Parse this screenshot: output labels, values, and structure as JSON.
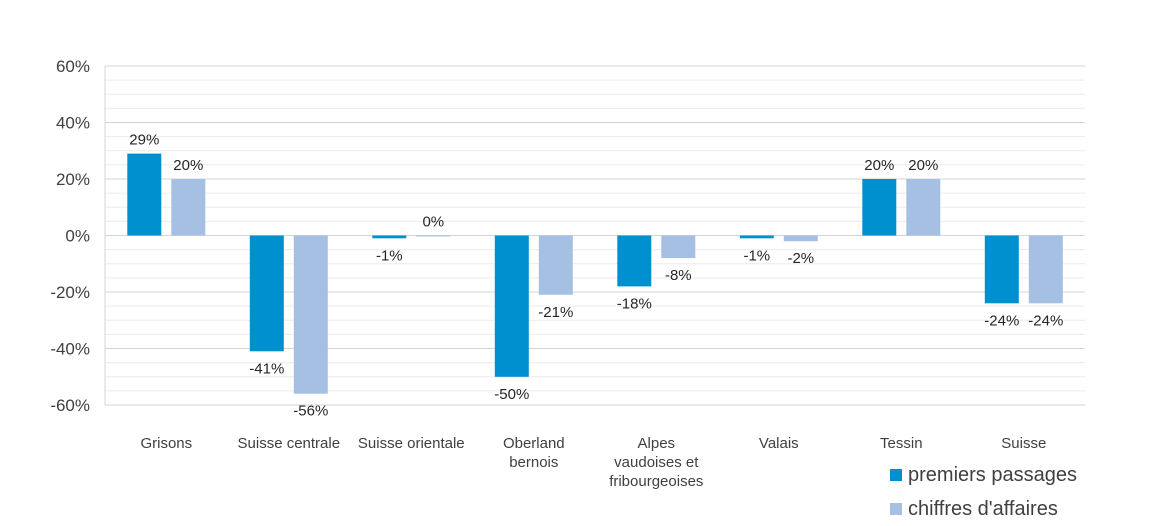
{
  "chart_data": {
    "type": "bar",
    "categories": [
      [
        "Grisons"
      ],
      [
        "Suisse centrale"
      ],
      [
        "Suisse orientale"
      ],
      [
        "Oberland",
        "bernois"
      ],
      [
        "Alpes",
        "vaudoises et",
        "fribourgeoises"
      ],
      [
        "Valais"
      ],
      [
        "Tessin"
      ],
      [
        "Suisse"
      ]
    ],
    "series": [
      {
        "name": "premiers passages",
        "color": "#0090CF",
        "values": [
          29,
          -41,
          -1,
          -50,
          -18,
          -1,
          20,
          -24
        ],
        "labels": [
          "29%",
          "-41%",
          "-1%",
          "-50%",
          "-18%",
          "-1%",
          "20%",
          "-24%"
        ]
      },
      {
        "name": "chiffres d'affaires",
        "color": "#A5C0E3",
        "values": [
          20,
          -56,
          0,
          -21,
          -8,
          -2,
          20,
          -24
        ],
        "labels": [
          "20%",
          "-56%",
          "0%",
          "-21%",
          "-8%",
          "-2%",
          "20%",
          "-24%"
        ]
      }
    ],
    "ylim": [
      -60,
      60
    ],
    "yticks": [
      60,
      40,
      20,
      0,
      -20,
      -40,
      -60
    ],
    "ytick_labels": [
      "60%",
      "40%",
      "20%",
      "0%",
      "-20%",
      "-40%",
      "-60%"
    ],
    "grid": true,
    "legend_position": "bottom-right",
    "title": "",
    "xlabel": "",
    "ylabel": ""
  }
}
